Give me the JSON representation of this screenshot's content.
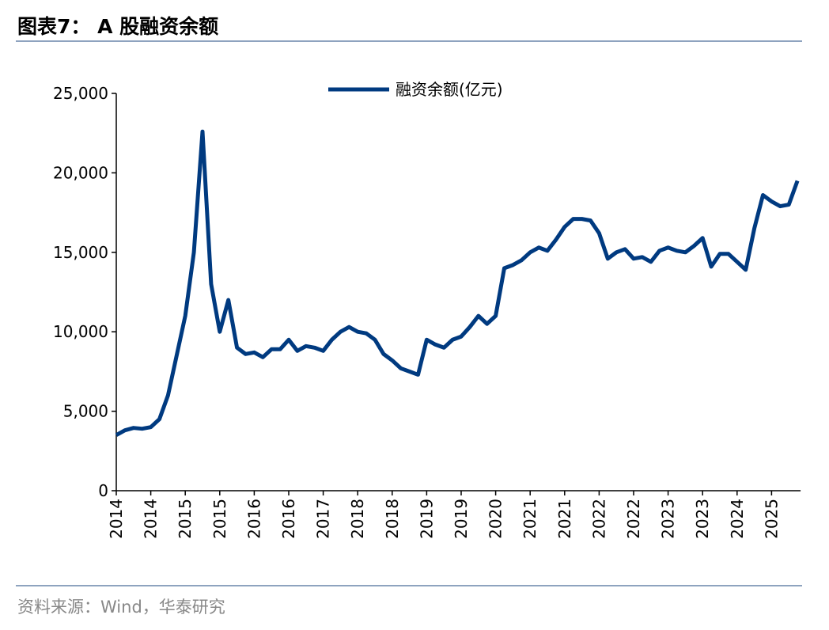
{
  "chart_data": {
    "type": "line",
    "title": "图表7：  A 股融资余额",
    "source": "资料来源：Wind，华泰研究",
    "categories": [
      "2014",
      null,
      null,
      null,
      "2014",
      null,
      null,
      null,
      "2015",
      null,
      null,
      null,
      "2015",
      null,
      null,
      null,
      "2016",
      null,
      null,
      null,
      "2016",
      null,
      null,
      null,
      "2017",
      null,
      null,
      null,
      "2018",
      null,
      null,
      null,
      "2018",
      null,
      null,
      null,
      "2019",
      null,
      null,
      null,
      "2019",
      null,
      null,
      null,
      "2020",
      null,
      null,
      null,
      "2021",
      null,
      null,
      null,
      "2021",
      null,
      null,
      null,
      "2022",
      null,
      null,
      null,
      "2022",
      null,
      null,
      null,
      "2023",
      null,
      null,
      null,
      "2023",
      null,
      null,
      null,
      "2024",
      null,
      null,
      null,
      "2025",
      null,
      null,
      null
    ],
    "series": [
      {
        "name": "融资余额(亿元)",
        "color": "#003a80",
        "values": [
          3500,
          3800,
          3950,
          3900,
          4000,
          4500,
          6000,
          8500,
          11000,
          15000,
          22600,
          13000,
          10000,
          12000,
          9000,
          8600,
          8700,
          8400,
          8900,
          8900,
          9500,
          8800,
          9100,
          9000,
          8800,
          9500,
          10000,
          10300,
          10000,
          9900,
          9500,
          8600,
          8200,
          7700,
          7500,
          7300,
          9500,
          9200,
          9000,
          9500,
          9700,
          10300,
          11000,
          10500,
          11000,
          14000,
          14200,
          14500,
          15000,
          15300,
          15100,
          15800,
          16600,
          17100,
          17100,
          17000,
          16200,
          14600,
          15000,
          15200,
          14600,
          14700,
          14400,
          15100,
          15300,
          15100,
          15000,
          15400,
          15900,
          14100,
          14900,
          14900,
          14400,
          13900,
          16500,
          18600,
          18200,
          17900,
          18000,
          19500
        ]
      }
    ],
    "ylim": [
      0,
      25000
    ],
    "yticks": [
      0,
      {
        "value": 5000,
        "label": "5,000"
      },
      {
        "value": 10000,
        "label": "10,000"
      },
      {
        "value": 15000,
        "label": "15,000"
      },
      {
        "value": 20000,
        "label": "20,000"
      },
      {
        "value": 25000,
        "label": "25,000"
      }
    ],
    "legend": "top"
  }
}
